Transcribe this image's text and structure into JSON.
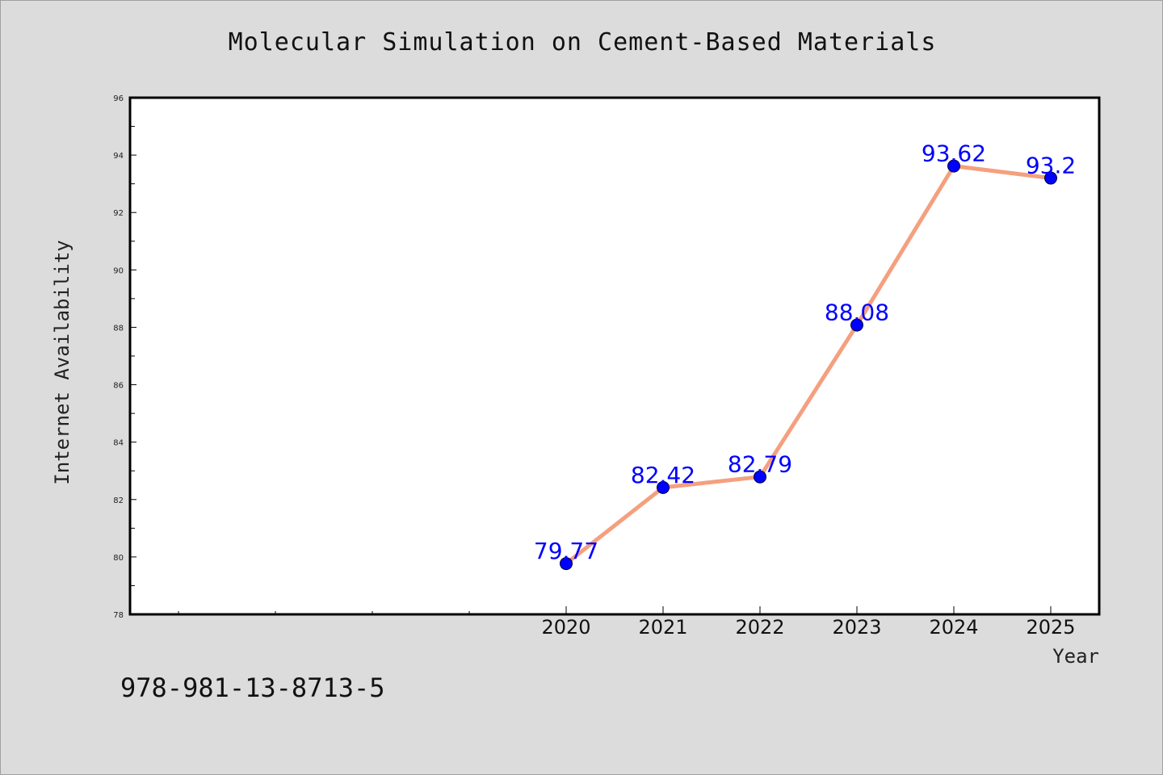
{
  "chart_data": {
    "type": "line",
    "title": "Molecular Simulation on Cement-Based Materials",
    "xlabel": "Year",
    "ylabel": "Internet Availability",
    "categories": [
      "2020",
      "2021",
      "2022",
      "2023",
      "2024",
      "2025"
    ],
    "x_range_slots": 10,
    "x_first_category_slot": 4,
    "series": [
      {
        "values": [
          79.77,
          82.42,
          82.79,
          88.08,
          93.62,
          93.2
        ],
        "labels": [
          "79.77",
          "82.42",
          "82.79",
          "88.08",
          "93.62",
          "93.2"
        ],
        "line_color": "#f4a07f",
        "marker_color": "#0000ff"
      }
    ],
    "ylim": [
      78,
      96
    ],
    "y_ticks": [
      78,
      80,
      82,
      84,
      86,
      88,
      90,
      92,
      94,
      96
    ],
    "grid": false,
    "legend": "none",
    "label_color": "#0000ff"
  },
  "footer": {
    "isbn": "978-981-13-8713-5"
  },
  "colors": {
    "background": "#dcdcdc",
    "plot_background": "#ffffff",
    "line": "#f4a07f",
    "marker": "#0000ff"
  }
}
